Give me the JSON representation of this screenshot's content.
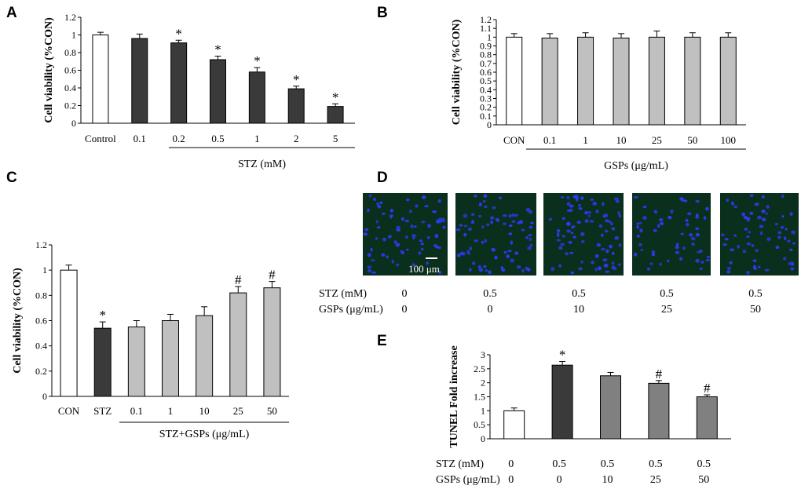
{
  "colors": {
    "white": "#ffffff",
    "dark": "#3a3a3a",
    "light": "#c0c0c0",
    "mid": "#808080",
    "micro_bg": "#0a2f1c",
    "nuclei": "#2a3cf0"
  },
  "chart_data": [
    {
      "id": "A",
      "type": "bar",
      "panel_label": "A",
      "title": "",
      "ylabel": "Cell viability (%CON)",
      "xlabel": "STZ (mM)",
      "ylim": [
        0,
        1.2
      ],
      "yticks": [
        "0",
        "0.2",
        "0.4",
        "0.6",
        "0.8",
        "1",
        "1.2"
      ],
      "categories": [
        "Control",
        "0.1",
        "0.2",
        "0.5",
        "1",
        "2",
        "5"
      ],
      "values": [
        1.0,
        0.96,
        0.91,
        0.72,
        0.58,
        0.39,
        0.19
      ],
      "errors": [
        0.03,
        0.05,
        0.03,
        0.04,
        0.05,
        0.03,
        0.03
      ],
      "fills": [
        "white",
        "dark",
        "dark",
        "dark",
        "dark",
        "dark",
        "dark"
      ],
      "annotations": [
        "",
        "",
        "*",
        "*",
        "*",
        "*",
        "*"
      ]
    },
    {
      "id": "B",
      "type": "bar",
      "panel_label": "B",
      "title": "",
      "ylabel": "Cell viability (%CON)",
      "xlabel": "GSPs (μg/mL)",
      "ylim": [
        0,
        1.2
      ],
      "yticks": [
        "0",
        "0.1",
        "0.2",
        "0.3",
        "0.4",
        "0.5",
        "0.6",
        "0.7",
        "0.8",
        "0.9",
        "1",
        "1.1",
        "1.2"
      ],
      "categories": [
        "CON",
        "0.1",
        "1",
        "10",
        "25",
        "50",
        "100"
      ],
      "values": [
        1.0,
        0.99,
        1.0,
        0.99,
        1.0,
        1.0,
        1.0
      ],
      "errors": [
        0.04,
        0.05,
        0.05,
        0.05,
        0.07,
        0.05,
        0.05
      ],
      "fills": [
        "white",
        "light",
        "light",
        "light",
        "light",
        "light",
        "light"
      ],
      "annotations": [
        "",
        "",
        "",
        "",
        "",
        "",
        ""
      ]
    },
    {
      "id": "C",
      "type": "bar",
      "panel_label": "C",
      "title": "",
      "ylabel": "Cell viability (%CON)",
      "xlabel": "STZ+GSPs (μg/mL)",
      "ylim": [
        0,
        1.2
      ],
      "yticks": [
        "0",
        "0.2",
        "0.4",
        "0.6",
        "0.8",
        "1",
        "1.2"
      ],
      "categories": [
        "CON",
        "STZ",
        "0.1",
        "1",
        "10",
        "25",
        "50"
      ],
      "values": [
        1.0,
        0.54,
        0.55,
        0.6,
        0.64,
        0.82,
        0.86
      ],
      "errors": [
        0.04,
        0.05,
        0.05,
        0.05,
        0.07,
        0.05,
        0.05
      ],
      "fills": [
        "white",
        "dark",
        "light",
        "light",
        "light",
        "light",
        "light"
      ],
      "annotations": [
        "",
        "*",
        "",
        "",
        "",
        "#",
        "#"
      ]
    },
    {
      "id": "E",
      "type": "bar",
      "panel_label": "E",
      "title": "",
      "ylabel": "TUNEL Fold increase",
      "xlabel": "",
      "ylim": [
        0,
        3
      ],
      "yticks": [
        "0",
        "0.5",
        "1",
        "1.5",
        "2",
        "2.5",
        "3"
      ],
      "categories": [
        "",
        "",
        "",
        "",
        ""
      ],
      "values": [
        1.0,
        2.63,
        2.25,
        1.98,
        1.5
      ],
      "errors": [
        0.1,
        0.13,
        0.12,
        0.1,
        0.07
      ],
      "fills": [
        "white",
        "dark",
        "mid",
        "mid",
        "mid"
      ],
      "annotations": [
        "",
        "*",
        "",
        "#",
        "#"
      ],
      "row_labels": [
        "STZ (mM)",
        "GSPs (μg/mL)"
      ],
      "stz_values": [
        "0",
        "0.5",
        "0.5",
        "0.5",
        "0.5"
      ],
      "gsps_values": [
        "0",
        "0",
        "10",
        "25",
        "50"
      ]
    }
  ],
  "panel_d": {
    "panel_label": "D",
    "scale_bar_label": "100 μm",
    "row_labels": [
      "STZ (mM)",
      "GSPs (μg/mL)"
    ],
    "stz_values": [
      "0",
      "0.5",
      "0.5",
      "0.5",
      "0.5"
    ],
    "gsps_values": [
      "0",
      "0",
      "10",
      "25",
      "50"
    ]
  }
}
